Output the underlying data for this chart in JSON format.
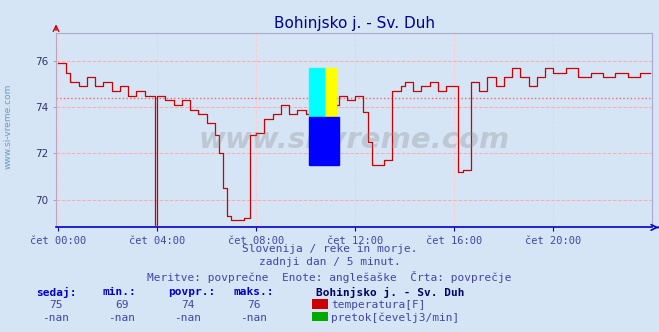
{
  "title": "Bohinjsko j. - Sv. Duh",
  "title_color": "#000099",
  "bg_color": "#d5e5f5",
  "plot_bg_color": "#d5e5f5",
  "grid_color_h": "#ffaaaa",
  "grid_color_v": "#ffcccc",
  "line_color": "#cc0000",
  "avg_line_color": "#ff6666",
  "xaxis_color": "#0000cc",
  "ylim": [
    68.8,
    77.2
  ],
  "yticks": [
    70,
    72,
    74,
    76
  ],
  "xlabel_color": "#4444aa",
  "xtick_labels": [
    "čet 00:00",
    "čet 04:00",
    "čet 08:00",
    "čet 12:00",
    "čet 16:00",
    "čet 20:00"
  ],
  "xtick_positions": [
    0,
    48,
    96,
    144,
    192,
    240
  ],
  "n_points": 288,
  "avg_value": 74.4,
  "footer_line1": "Slovenija / reke in morje.",
  "footer_line2": "zadnji dan / 5 minut.",
  "footer_line3": "Meritve: povprečne  Enote: anglešaške  Črta: povprečje",
  "footer_color": "#4444aa",
  "table_header_color": "#0000cc",
  "table_value_color": "#4444aa",
  "table_bold_color": "#000066",
  "sedaj": 75,
  "min_val": 69,
  "povpr": 74,
  "maks": 76,
  "station_name": "Bohinjsko j. - Sv. Duh",
  "legend_temp_color": "#cc0000",
  "legend_flow_color": "#00aa00",
  "watermark": "www.si-vreme.com",
  "sidebar_text": "www.si-vreme.com"
}
